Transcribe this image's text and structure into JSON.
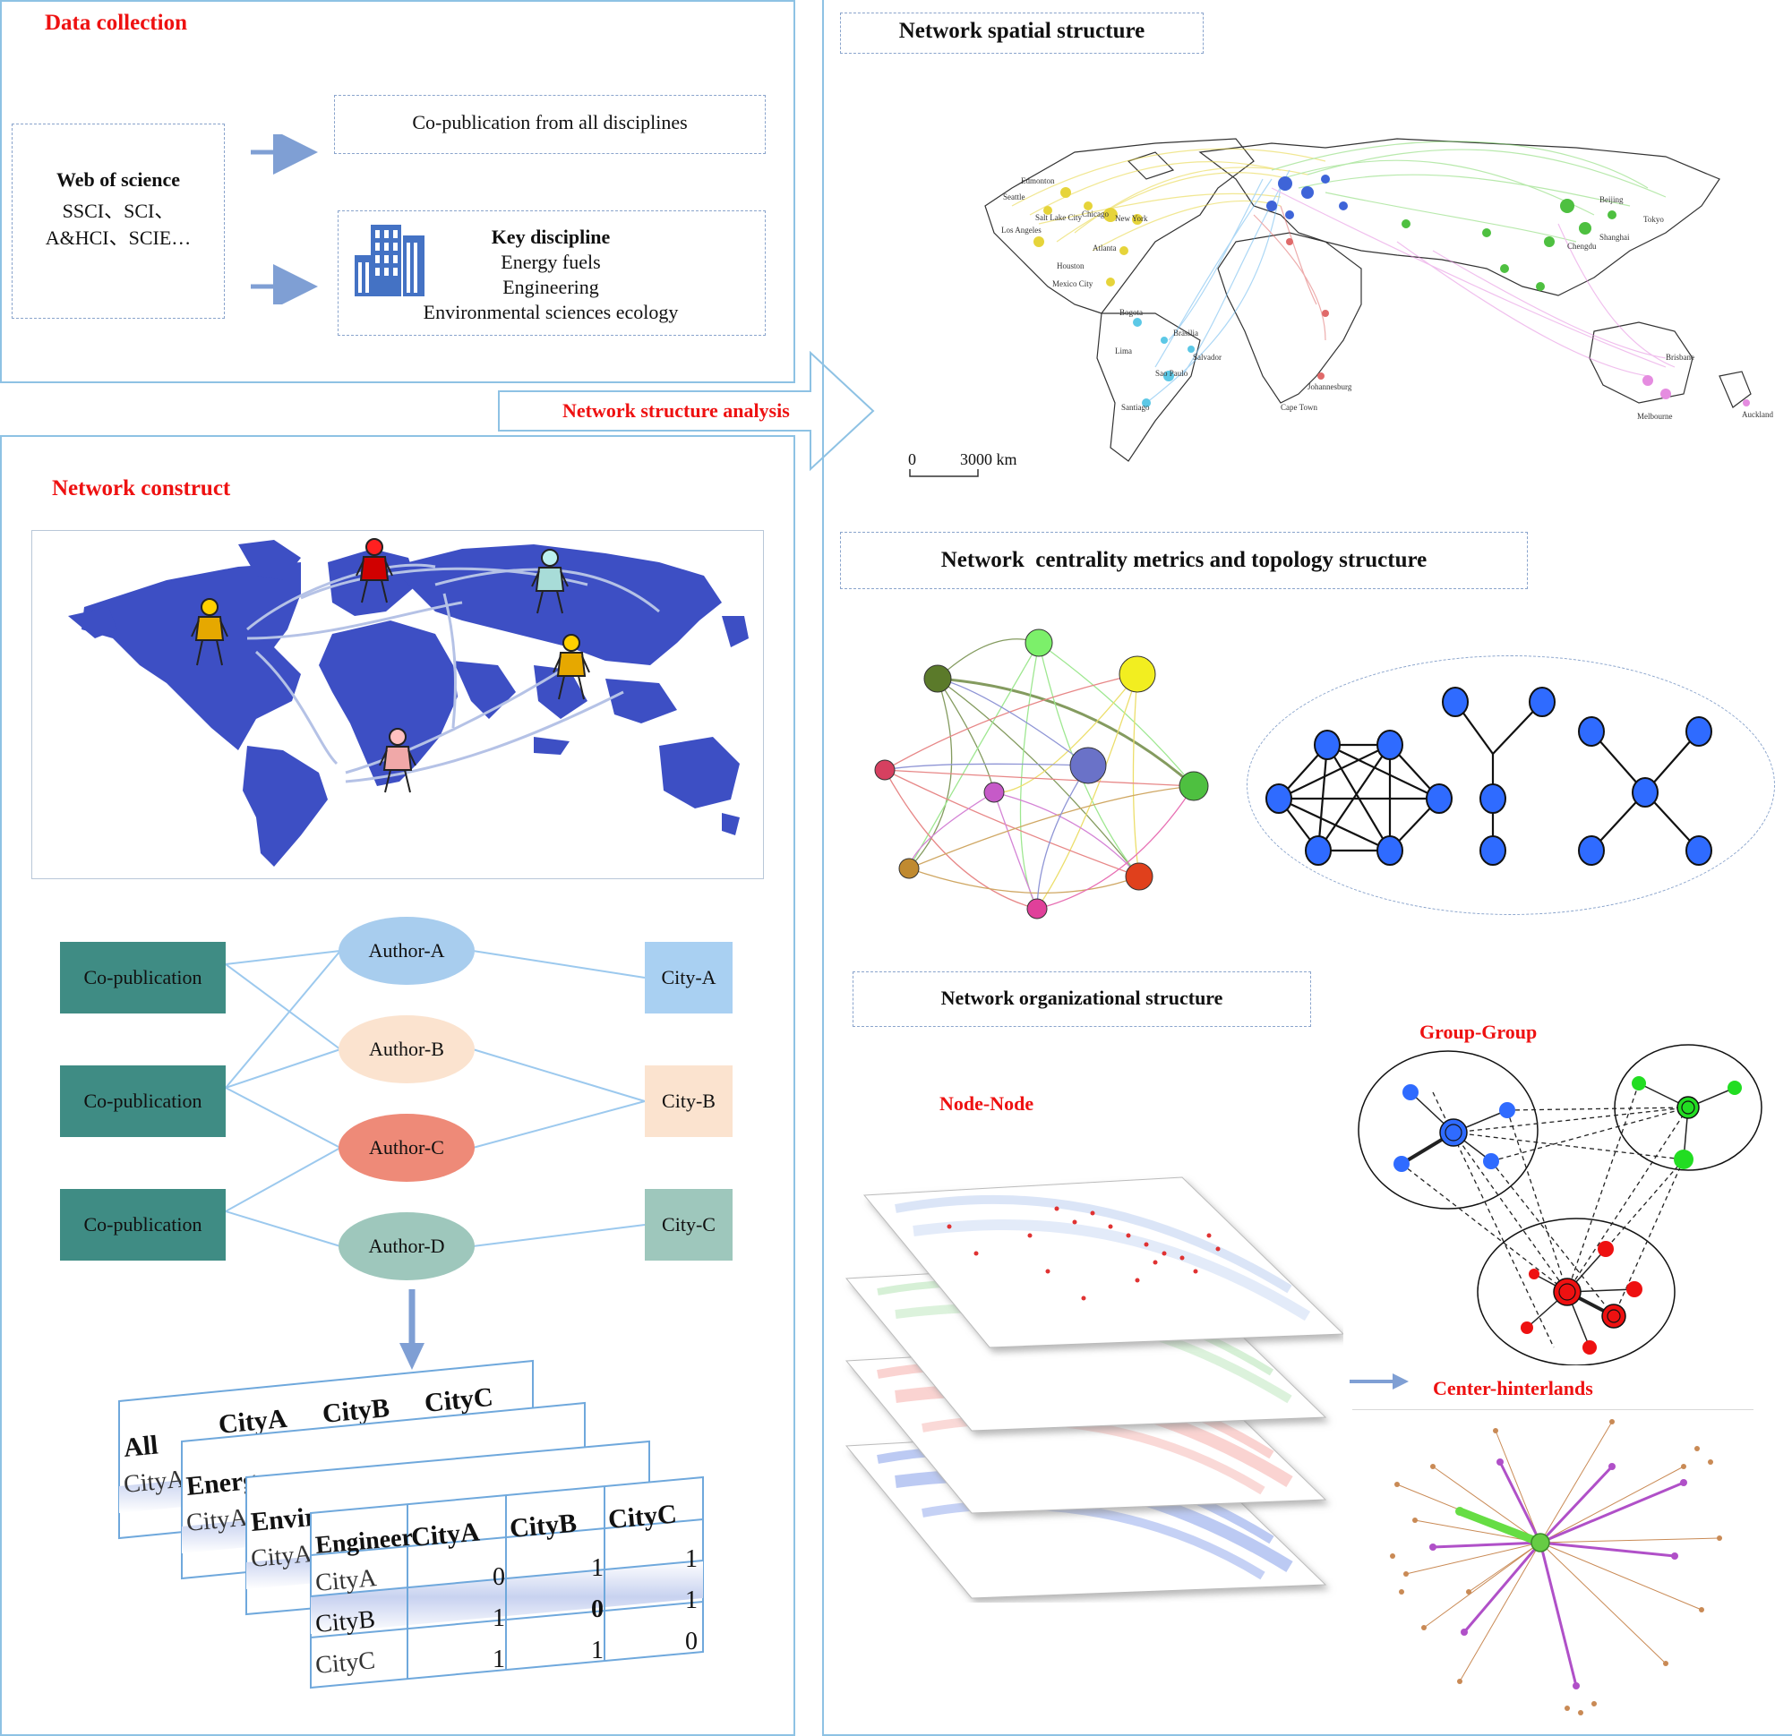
{
  "data_collection": {
    "title": "Data collection",
    "wos": {
      "title": "Web of science",
      "line1": "SSCI、SCI、",
      "line2": "A&HCI、SCIE…"
    },
    "copub_all": "Co-publication from all disciplines",
    "key_discipline": {
      "title": "Key discipline",
      "items": [
        "Energy fuels",
        "Engineering",
        "Environmental sciences ecology"
      ]
    }
  },
  "arrow_label": "Network structure analysis",
  "network_construct": {
    "title": "Network construct",
    "copub_boxes": [
      "Co-publication",
      "Co-publication",
      "Co-publication"
    ],
    "authors": [
      "Author-A",
      "Author-B",
      "Author-C",
      "Author-D"
    ],
    "cities": [
      "City-A",
      "City-B",
      "City-C"
    ],
    "matrix_sheets": [
      "All",
      "Energy",
      "Environ",
      "Engineer"
    ],
    "matrix_cols": [
      "CityA",
      "CityB",
      "CityC"
    ],
    "matrix_rows": [
      "CityA",
      "CityB",
      "CityC"
    ],
    "matrix_values": [
      [
        "0",
        "1",
        "1"
      ],
      [
        "1",
        "0",
        "1"
      ],
      [
        "1",
        "1",
        "0"
      ]
    ]
  },
  "spatial": {
    "title": "Network spatial structure",
    "scale_zero": "0",
    "scale_label": "3000 km",
    "cities": [
      "Edmonton",
      "Seattle",
      "Salt Lake City",
      "Chicago",
      "New York",
      "Los Angeles",
      "Atlanta",
      "Houston",
      "Mexico City",
      "Bogota",
      "Lima",
      "Brasilia",
      "Sao Paulo",
      "Santiago",
      "Salvador",
      "Beijing",
      "Shanghai",
      "Tokyo",
      "Chengdu",
      "Brisbane",
      "Melbourne",
      "Auckland",
      "Johannesburg",
      "Cape Town"
    ]
  },
  "centrality": {
    "title": "Network  centrality metrics and topology structure"
  },
  "organizational": {
    "title": "Network organizational structure",
    "node_node": "Node-Node",
    "group_group": "Group-Group",
    "center_hinterlands": "Center-hinterlands"
  },
  "colors": {
    "panel_border": "#8ec2e4",
    "title_red": "#ee1111",
    "teal": "#3f8c84",
    "map_blue": "#3d4fc4",
    "node_blue": "#2f6bff"
  }
}
